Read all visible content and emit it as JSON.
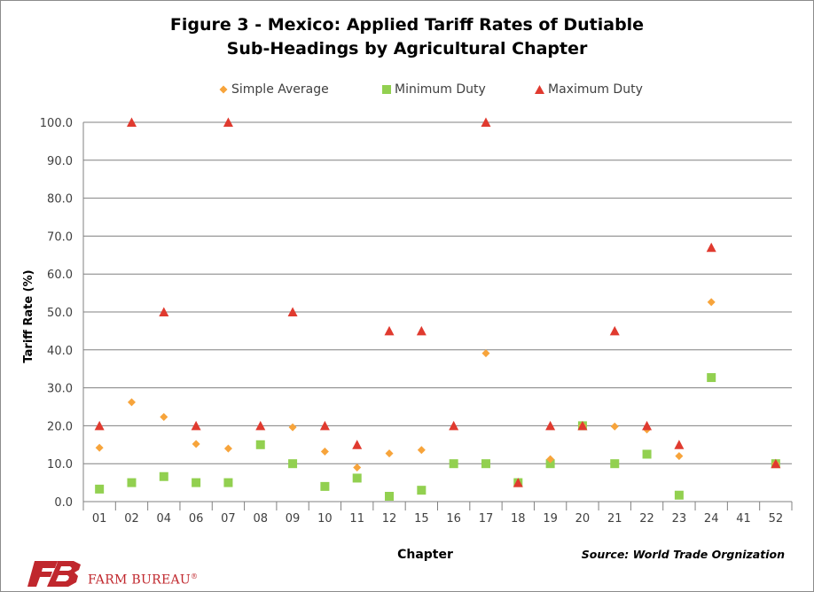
{
  "chart_data": {
    "type": "scatter",
    "title_line1": "Figure 3 - Mexico: Applied Tariff Rates of Dutiable",
    "title_line2": "Sub-Headings by Agricultural Chapter",
    "xlabel": "Chapter",
    "ylabel": "Tariff Rate (%)",
    "ylim": [
      0,
      100
    ],
    "yticks": [
      "0.0",
      "10.0",
      "20.0",
      "30.0",
      "40.0",
      "50.0",
      "60.0",
      "70.0",
      "80.0",
      "90.0",
      "100.0"
    ],
    "categories": [
      "01",
      "02",
      "04",
      "06",
      "07",
      "08",
      "09",
      "10",
      "11",
      "12",
      "15",
      "16",
      "17",
      "18",
      "19",
      "20",
      "21",
      "22",
      "23",
      "24",
      "41",
      "52"
    ],
    "grid": "horizontal",
    "legend_position": "top",
    "series": [
      {
        "name": "Simple Average",
        "marker": "diamond",
        "color": "#f7a43b",
        "values": [
          14.2,
          26.2,
          22.3,
          15.2,
          14.0,
          null,
          19.6,
          13.2,
          9.0,
          12.7,
          13.6,
          null,
          39.1,
          null,
          11.2,
          20.0,
          19.8,
          19.0,
          12.0,
          52.6,
          null,
          10.0
        ]
      },
      {
        "name": "Minimum Duty",
        "marker": "square",
        "color": "#92d050",
        "values": [
          3.3,
          5.0,
          6.6,
          5.0,
          5.0,
          15.0,
          10.0,
          4.0,
          6.2,
          1.4,
          3.0,
          10.0,
          10.0,
          5.0,
          10.0,
          20.0,
          10.0,
          12.5,
          1.7,
          32.7,
          null,
          10.0
        ]
      },
      {
        "name": "Maximum Duty",
        "marker": "triangle",
        "color": "#e03a2f",
        "values": [
          20.0,
          100.0,
          50.0,
          20.0,
          100.0,
          20.0,
          50.0,
          20.0,
          15.0,
          45.0,
          45.0,
          20.0,
          100.0,
          5.0,
          20.0,
          20.0,
          45.0,
          20.0,
          15.0,
          67.0,
          null,
          10.0
        ]
      }
    ]
  },
  "source": "Source: World Trade Orgnization",
  "logo": {
    "mark": "FB",
    "name": "FARM BUREAU",
    "registered": "®",
    "color": "#c0272d"
  }
}
